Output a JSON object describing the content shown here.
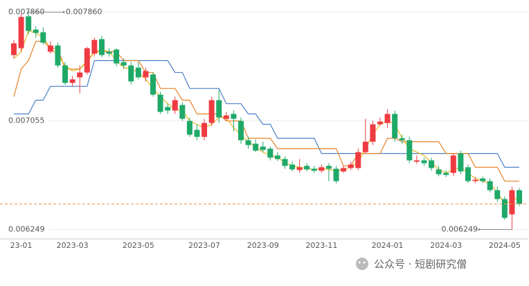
{
  "chart_data": {
    "type": "candlestick",
    "categories": [
      null,
      "23-01",
      null,
      null,
      null,
      null,
      null,
      null,
      "2023-03",
      null,
      null,
      null,
      null,
      null,
      null,
      null,
      null,
      "2023-05",
      null,
      null,
      null,
      null,
      null,
      null,
      null,
      null,
      "2023-07",
      null,
      null,
      null,
      null,
      null,
      null,
      null,
      "2023-09",
      null,
      null,
      null,
      null,
      null,
      null,
      null,
      "2023-11",
      null,
      null,
      null,
      null,
      null,
      null,
      null,
      null,
      "2024-01",
      null,
      null,
      null,
      null,
      null,
      null,
      null,
      "2024-03",
      null,
      null,
      null,
      null,
      null,
      null,
      null,
      "2024-05",
      null,
      null
    ],
    "open": [
      0.007542,
      0.007593,
      0.007829,
      0.007731,
      0.007711,
      0.007567,
      0.007613,
      0.007465,
      0.007336,
      0.007377,
      0.007413,
      0.007552,
      0.00766,
      0.007567,
      0.007583,
      0.00749,
      0.007465,
      0.007449,
      0.007377,
      0.007398,
      0.007249,
      0.007157,
      0.007131,
      0.007172,
      0.007054,
      0.006988,
      0.006936,
      0.007039,
      0.007208,
      0.00707,
      0.007106,
      0.007054,
      0.006911,
      0.006885,
      0.006864,
      0.006849,
      0.006798,
      0.006772,
      0.006731,
      0.00669,
      0.006721,
      0.0067,
      0.006685,
      0.006721,
      0.0067,
      0.00668,
      0.006705,
      0.006705,
      0.006823,
      0.0069,
      0.007029,
      0.007039,
      0.007106,
      0.006926,
      0.006911,
      0.006752,
      0.006762,
      0.006762,
      0.006695,
      0.006669,
      0.006669,
      0.006813,
      0.006711,
      0.006608,
      0.006628,
      0.006608,
      0.006541,
      0.006475,
      0.006362,
      0.006541
    ],
    "high": [
      0.007654,
      0.007849,
      0.00786,
      0.007757,
      0.007747,
      0.007644,
      0.007634,
      0.00749,
      0.007388,
      0.007465,
      0.007603,
      0.00767,
      0.007685,
      0.007593,
      0.007593,
      0.007516,
      0.00749,
      0.00749,
      0.007449,
      0.007413,
      0.00727,
      0.007182,
      0.007234,
      0.007193,
      0.00708,
      0.007029,
      0.00707,
      0.007234,
      0.007285,
      0.007121,
      0.007131,
      0.00708,
      0.006936,
      0.006916,
      0.0069,
      0.006864,
      0.006823,
      0.006793,
      0.006752,
      0.006772,
      0.006741,
      0.006721,
      0.006731,
      0.006741,
      0.006721,
      0.006721,
      0.006752,
      0.006849,
      0.00707,
      0.007054,
      0.00708,
      0.007141,
      0.007131,
      0.006952,
      0.006936,
      0.006798,
      0.006782,
      0.006782,
      0.006721,
      0.00669,
      0.006813,
      0.006834,
      0.006731,
      0.006639,
      0.006644,
      0.006628,
      0.006567,
      0.006495,
      0.006567,
      0.006557
    ],
    "low": [
      0.007516,
      0.007567,
      0.007695,
      0.00767,
      0.007619,
      0.007552,
      0.007449,
      0.007321,
      0.007311,
      0.007259,
      0.007398,
      0.007531,
      0.007526,
      0.007531,
      0.00746,
      0.007439,
      0.007326,
      0.007362,
      0.007347,
      0.007234,
      0.007106,
      0.007106,
      0.007106,
      0.007054,
      0.006936,
      0.006911,
      0.006911,
      0.007018,
      0.007039,
      0.007054,
      0.006977,
      0.006885,
      0.006849,
      0.006823,
      0.006823,
      0.006762,
      0.006757,
      0.0067,
      0.00668,
      0.006669,
      0.00668,
      0.006669,
      0.006669,
      0.006608,
      0.006593,
      0.006669,
      0.00669,
      0.00669,
      0.006813,
      0.006875,
      0.007018,
      0.007003,
      0.0069,
      0.006885,
      0.006741,
      0.006736,
      0.006721,
      0.006685,
      0.006644,
      0.006639,
      0.006644,
      0.006659,
      0.006593,
      0.006593,
      0.006593,
      0.006526,
      0.006454,
      0.006321,
      0.006249,
      0.006423
    ],
    "close": [
      0.007629,
      0.007824,
      0.007721,
      0.007706,
      0.007634,
      0.007613,
      0.007465,
      0.007336,
      0.007362,
      0.007413,
      0.007593,
      0.007654,
      0.007542,
      0.007552,
      0.00748,
      0.007465,
      0.007347,
      0.007377,
      0.007424,
      0.007249,
      0.007121,
      0.007131,
      0.007208,
      0.00707,
      0.006952,
      0.006936,
      0.007039,
      0.007208,
      0.00708,
      0.007095,
      0.00707,
      0.006911,
      0.006875,
      0.006834,
      0.006839,
      0.006782,
      0.006772,
      0.006721,
      0.006695,
      0.006711,
      0.006695,
      0.006685,
      0.006711,
      0.0067,
      0.006608,
      0.006705,
      0.006731,
      0.006823,
      0.0069,
      0.007029,
      0.007049,
      0.007106,
      0.006926,
      0.006911,
      0.006762,
      0.006762,
      0.006741,
      0.006705,
      0.006659,
      0.006654,
      0.006798,
      0.00668,
      0.006608,
      0.006618,
      0.006608,
      0.006541,
      0.006475,
      0.006336,
      0.006541,
      0.006439
    ],
    "up_color": "#ee3b42",
    "down_color": "#1fa969",
    "lines": [
      {
        "color": "#4a7fc9",
        "values": [
          0.007106,
          0.007106,
          0.007106,
          0.007208,
          0.007208,
          0.007311,
          0.007311,
          0.007311,
          0.007311,
          0.007311,
          0.007311,
          0.007501,
          0.007501,
          0.007501,
          0.007501,
          0.007501,
          0.007501,
          0.007501,
          0.007501,
          0.007501,
          0.007501,
          0.007501,
          0.007413,
          0.007413,
          0.007295,
          0.007295,
          0.007295,
          0.007295,
          0.007295,
          0.007182,
          0.007182,
          0.007182,
          0.007106,
          0.007106,
          0.007029,
          0.007029,
          0.006926,
          0.006926,
          0.006926,
          0.006926,
          0.006926,
          0.006926,
          0.006813,
          0.006813,
          0.006813,
          0.006813,
          0.006813,
          0.006813,
          0.006813,
          0.006813,
          0.006813,
          0.006813,
          0.006813,
          0.006813,
          0.006813,
          0.006813,
          0.006813,
          0.006813,
          0.006813,
          0.006813,
          0.006813,
          0.006813,
          0.006813,
          0.006813,
          0.006813,
          0.006813,
          0.006813,
          0.006711,
          0.006711,
          0.006711
        ]
      },
      {
        "color": "#e8832a",
        "values": [
          0.007234,
          0.007439,
          0.007501,
          0.007644,
          0.007644,
          0.007593,
          0.007593,
          0.007439,
          0.007439,
          0.007439,
          0.00749,
          0.007567,
          0.007567,
          0.007567,
          0.007567,
          0.007501,
          0.007501,
          0.007501,
          0.007413,
          0.007413,
          0.007295,
          0.007295,
          0.007295,
          0.007208,
          0.007208,
          0.007106,
          0.007106,
          0.007106,
          0.007106,
          0.007054,
          0.007054,
          0.007054,
          0.006926,
          0.006926,
          0.006926,
          0.006926,
          0.006849,
          0.006849,
          0.006849,
          0.006849,
          0.006849,
          0.006849,
          0.006849,
          0.006849,
          0.006849,
          0.006721,
          0.006721,
          0.006813,
          0.006813,
          0.006813,
          0.006813,
          0.006926,
          0.006926,
          0.0069,
          0.0069,
          0.0069,
          0.0069,
          0.0069,
          0.0069,
          0.006813,
          0.006813,
          0.006813,
          0.006813,
          0.006711,
          0.006711,
          0.006711,
          0.006711,
          0.006608,
          0.006608,
          0.006608
        ]
      },
      {
        "color": "#e8b820",
        "values": [
          0.007516,
          0.007567,
          0.007721,
          0.007706,
          0.00767,
          0.007593,
          0.007542,
          0.007465,
          0.007424,
          0.007439,
          0.007501,
          0.007567,
          0.007583,
          0.007567,
          0.007501,
          0.007449,
          0.007439,
          0.007413,
          0.007362,
          0.007295,
          0.007234,
          0.007182,
          0.007141,
          0.007131,
          0.007054,
          0.007029,
          0.007003,
          0.007029,
          0.00708,
          0.00708,
          0.007003,
          0.006952,
          0.0069,
          0.006864,
          0.006823,
          0.006798,
          0.006782,
          0.006746,
          0.006721,
          0.006711,
          0.0067,
          0.006695,
          0.0067,
          0.006695,
          0.00668,
          0.006695,
          0.006711,
          0.006746,
          0.006849,
          0.006952,
          0.007029,
          0.007054,
          0.007029,
          0.006926,
          0.006849,
          0.006823,
          0.006798,
          0.006746,
          0.006695,
          0.006669,
          0.006695,
          0.006711,
          0.006669,
          0.006628,
          0.006608,
          0.006593,
          0.006526,
          0.006439,
          0.006464,
          0.00649
        ]
      }
    ],
    "last_line_color": "#f0954a",
    "ylim": [
      0.00618,
      0.00795
    ],
    "yticks": [
      {
        "value": 0.00786,
        "label": "0.007860"
      },
      0.007055,
      0.006249
    ],
    "annotations": [
      "0.007860",
      "0.006249"
    ],
    "watermark": "公众号 · 短剧研究僧"
  }
}
